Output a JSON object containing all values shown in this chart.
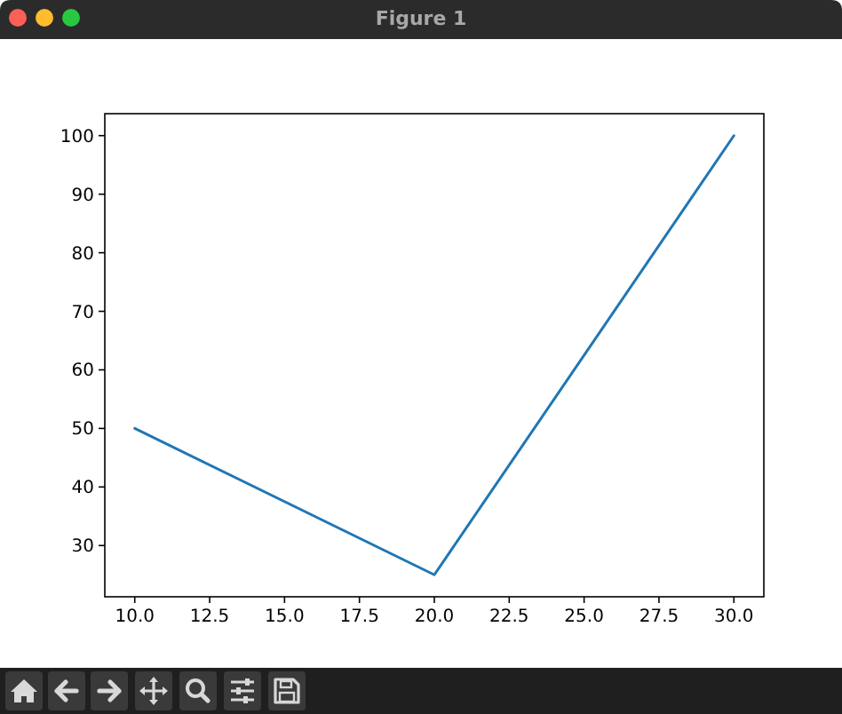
{
  "chart_data": {
    "type": "line",
    "title": "Figure 1",
    "x": [
      10,
      20,
      30
    ],
    "series": [
      {
        "color": "#1f77b4",
        "values": [
          50,
          25,
          100
        ]
      }
    ],
    "xlim": [
      9,
      31
    ],
    "ylim": [
      21.25,
      103.75
    ],
    "xticks": [
      {
        "value": 10,
        "label": "10.0"
      },
      {
        "value": 12.5,
        "label": "12.5"
      },
      {
        "value": 15,
        "label": "15.0"
      },
      {
        "value": 17.5,
        "label": "17.5"
      },
      {
        "value": 20,
        "label": "20.0"
      },
      {
        "value": 22.5,
        "label": "22.5"
      },
      {
        "value": 25,
        "label": "25.0"
      },
      {
        "value": 27.5,
        "label": "27.5"
      },
      {
        "value": 30,
        "label": "30.0"
      }
    ],
    "yticks": [
      30,
      40,
      50,
      60,
      70,
      80,
      90,
      100
    ],
    "line_style": "solid"
  }
}
